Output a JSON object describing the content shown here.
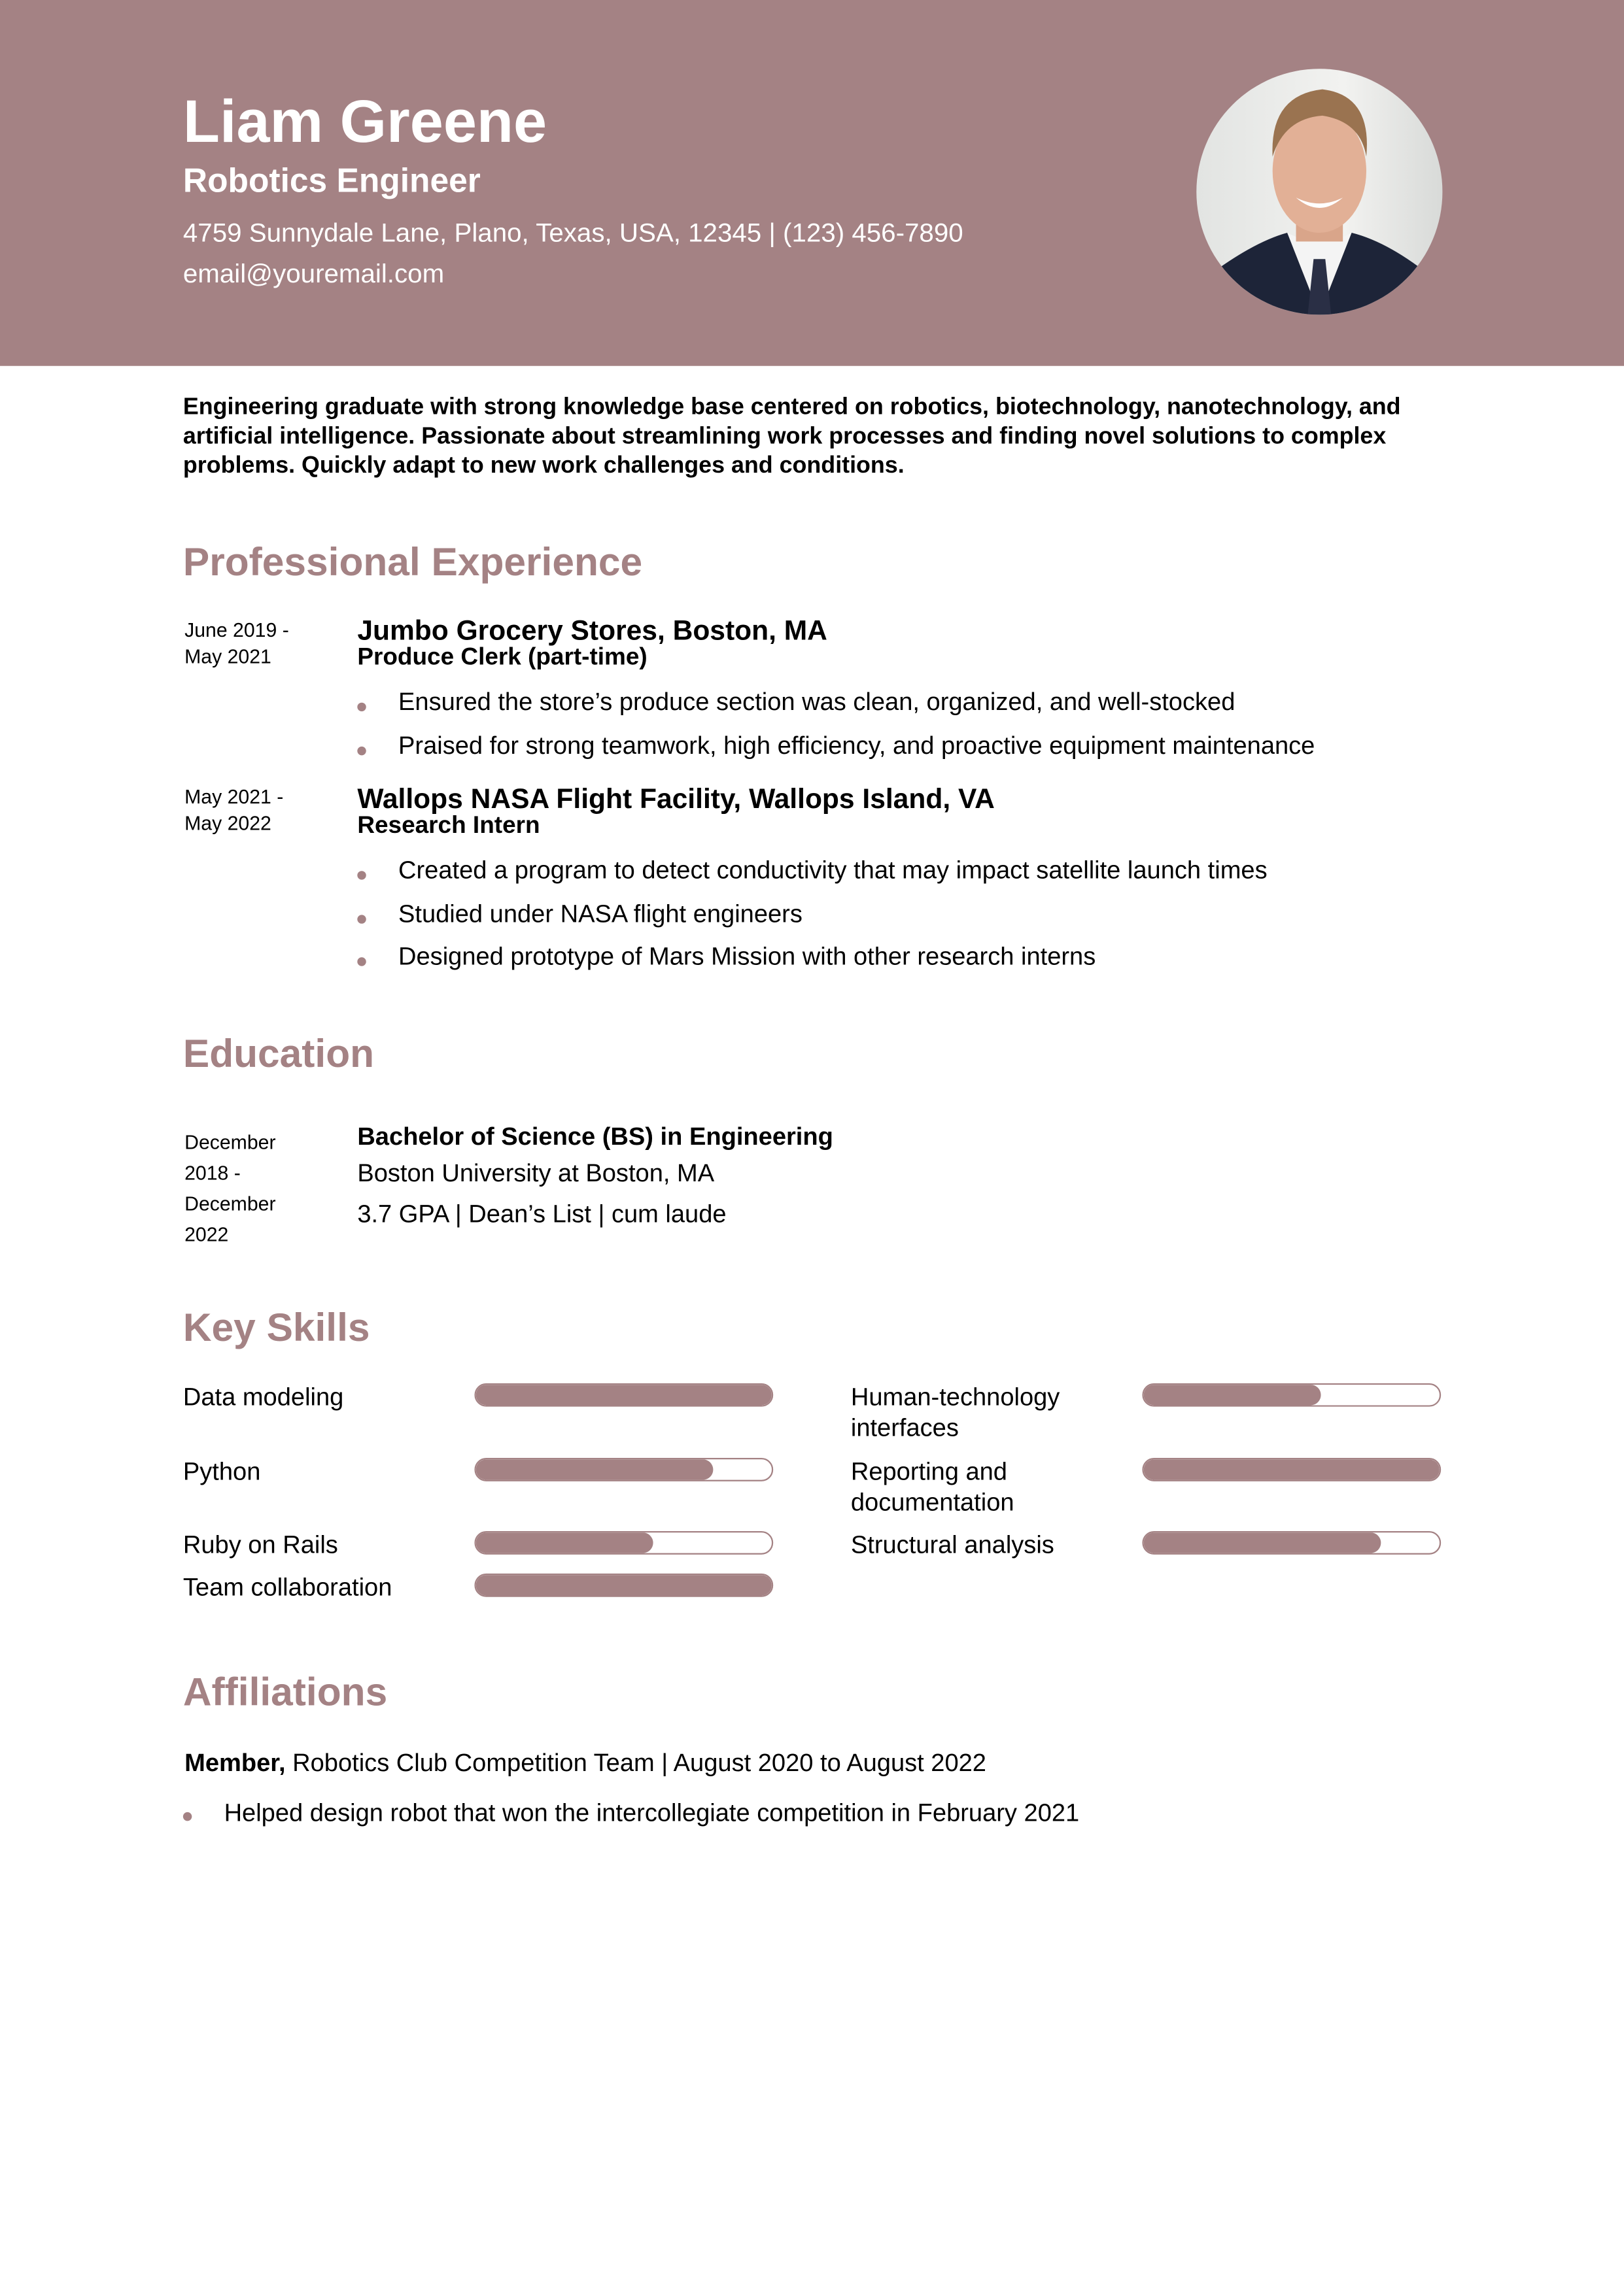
{
  "accent_color": "#a48284",
  "header": {
    "name": "Liam Greene",
    "title": "Robotics Engineer",
    "address_phone": "4759 Sunnydale Lane, Plano, Texas, USA, 12345 | (123) 456-7890",
    "email": "email@youremail.com",
    "photo": "profile-photo"
  },
  "summary": "Engineering graduate with strong knowledge base centered on robotics, biotechnology, nanotechnology, and artificial intelligence. Passionate about streamlining work processes and finding novel solutions to complex problems. Quickly adapt to new work challenges and conditions.",
  "experience": {
    "heading": "Professional Experience",
    "jobs": [
      {
        "date_start": "June 2019 -",
        "date_end": "May 2021",
        "company": "Jumbo Grocery Stores, Boston, MA",
        "role": "Produce Clerk (part-time)",
        "bullets": [
          "Ensured the store’s produce section was clean, organized, and well-stocked",
          "Praised for strong teamwork, high efficiency, and proactive equipment maintenance"
        ]
      },
      {
        "date_start": "May 2021 -",
        "date_end": "May 2022",
        "company": "Wallops NASA Flight Facility, Wallops Island, VA",
        "role": "Research Intern",
        "bullets": [
          "Created a program to detect conductivity that may impact satellite launch times",
          "Studied under NASA flight engineers",
          "Designed prototype of Mars Mission with other research interns"
        ]
      }
    ]
  },
  "education": {
    "heading": "Education",
    "date_lines": [
      "December",
      "2018 -",
      "December",
      "2022"
    ],
    "degree": "Bachelor of Science (BS) in Engineering",
    "school": "Boston University at Boston, MA",
    "details": "3.7 GPA | Dean’s List | cum laude"
  },
  "skills": {
    "heading": "Key Skills",
    "items": [
      {
        "label": "Data modeling",
        "level": 100
      },
      {
        "label": "Human-technology interfaces",
        "level": 60
      },
      {
        "label": "Python",
        "level": 80
      },
      {
        "label": "Reporting and documentation",
        "level": 100
      },
      {
        "label": "Ruby on Rails",
        "level": 60
      },
      {
        "label": "Structural analysis",
        "level": 80
      },
      {
        "label": "Team collaboration",
        "level": 100
      }
    ]
  },
  "affiliations": {
    "heading": "Affiliations",
    "role": "Member,",
    "description": " Robotics Club Competition Team | August 2020 to August 2022",
    "bullet": "Helped design robot that won the intercollegiate competition in February 2021"
  }
}
